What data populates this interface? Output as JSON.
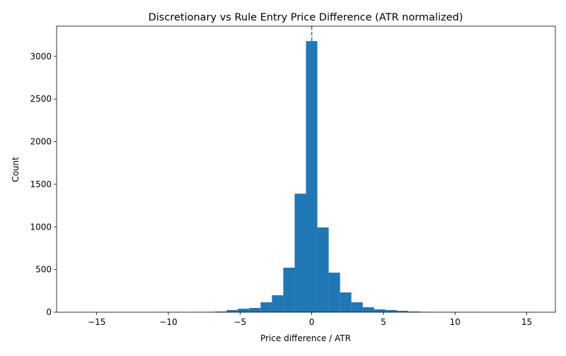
{
  "chart_data": {
    "type": "bar",
    "subtype": "histogram",
    "title": "Discretionary vs Rule Entry Price Difference (ATR normalized)",
    "xlabel": "Price difference / ATR",
    "ylabel": "Count",
    "xlim": [
      -17.8,
      17.0
    ],
    "ylim": [
      0,
      3355
    ],
    "xticks": [
      -15,
      -10,
      -5,
      0,
      5,
      10,
      15
    ],
    "yticks": [
      0,
      500,
      1000,
      1500,
      2000,
      2500,
      3000
    ],
    "bin_start": -16.24,
    "bin_width": 0.792,
    "counts": [
      1,
      0,
      0,
      0,
      0,
      0,
      0,
      4,
      4,
      0,
      3,
      4,
      8,
      25,
      41,
      50,
      116,
      199,
      522,
      1390,
      3180,
      994,
      464,
      232,
      116,
      58,
      33,
      25,
      16,
      8,
      5,
      4,
      4,
      3,
      3,
      0,
      0,
      0,
      0,
      1
    ],
    "bar_color": "#1f77b4",
    "reference_line": {
      "x": 0,
      "style": "dashed",
      "color": "#1f77b4"
    },
    "grid": false,
    "legend": "none"
  }
}
